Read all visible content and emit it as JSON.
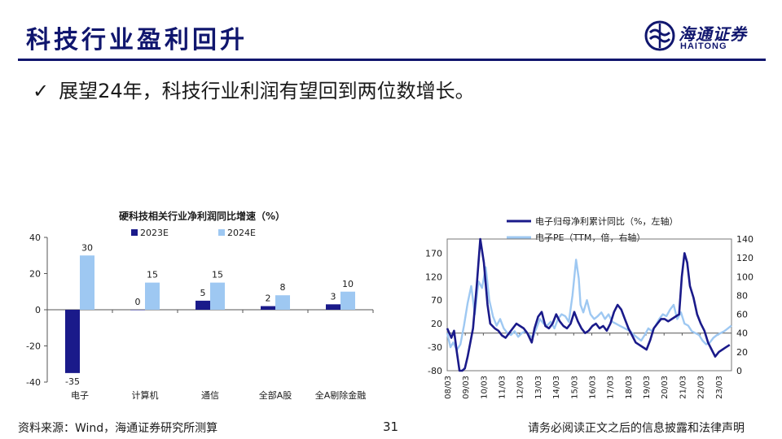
{
  "slide": {
    "title": "科技行业盈利回升",
    "bullet": "展望24年，科技行业利润有望回到两位数增长。",
    "logo_cn": "海通证券",
    "logo_en": "HAITONG",
    "source": "资料来源：Wind，海通证券研究所测算",
    "page_number": "31",
    "disclaimer": "请务必阅读正文之后的信息披露和法律声明",
    "colors": {
      "navy": "#10166e",
      "dark_series": "#1a1a8a",
      "light_series": "#9ec8f2"
    }
  },
  "chart_data": [
    {
      "type": "bar",
      "title": "硬科技相关行业净利润同比增速（%）",
      "categories": [
        "电子",
        "计算机",
        "通信",
        "全部A股",
        "全A剔除金融"
      ],
      "series": [
        {
          "name": "2023E",
          "values": [
            -35,
            0,
            5,
            2,
            3
          ],
          "color": "#1a1a8a"
        },
        {
          "name": "2024E",
          "values": [
            30,
            15,
            15,
            8,
            10
          ],
          "color": "#9ec8f2"
        }
      ],
      "ylim": [
        -40,
        40
      ],
      "yticks": [
        -40,
        -20,
        0,
        20,
        40
      ],
      "legend": "top"
    },
    {
      "type": "line",
      "x_ticks": [
        "08/03",
        "09/03",
        "10/03",
        "11/03",
        "12/03",
        "13/03",
        "14/03",
        "15/03",
        "16/03",
        "17/03",
        "18/03",
        "19/03",
        "20/03",
        "21/03",
        "22/03",
        "23/03"
      ],
      "x_range": [
        2008.17,
        2023.9
      ],
      "y_left": {
        "ylim": [
          -80,
          200
        ],
        "ticks": [
          -80,
          -30,
          20,
          70,
          120,
          170
        ]
      },
      "y_right": {
        "ylim": [
          0,
          140
        ],
        "ticks": [
          0,
          20,
          40,
          60,
          80,
          100,
          120,
          140
        ]
      },
      "legend": "top",
      "series": [
        {
          "name": "电子归母净利累计同比（%，左轴）",
          "axis": "left",
          "color": "#1a1a8a",
          "x": [
            2008.17,
            2008.4,
            2008.55,
            2008.7,
            2008.85,
            2009.0,
            2009.15,
            2009.3,
            2009.45,
            2009.6,
            2009.8,
            2010.0,
            2010.2,
            2010.4,
            2010.55,
            2010.8,
            2011.0,
            2011.2,
            2011.4,
            2011.6,
            2011.8,
            2012.0,
            2012.2,
            2012.4,
            2012.6,
            2012.85,
            2013.0,
            2013.2,
            2013.4,
            2013.6,
            2013.8,
            2014.0,
            2014.2,
            2014.4,
            2014.6,
            2014.8,
            2015.0,
            2015.2,
            2015.4,
            2015.6,
            2015.8,
            2016.0,
            2016.2,
            2016.4,
            2016.6,
            2016.8,
            2017.0,
            2017.2,
            2017.4,
            2017.6,
            2017.8,
            2018.0,
            2018.2,
            2018.4,
            2018.6,
            2018.8,
            2019.0,
            2019.2,
            2019.4,
            2019.6,
            2019.8,
            2020.0,
            2020.2,
            2020.4,
            2020.6,
            2020.8,
            2021.0,
            2021.15,
            2021.3,
            2021.45,
            2021.6,
            2021.8,
            2022.0,
            2022.2,
            2022.4,
            2022.6,
            2022.8,
            2023.0,
            2023.2,
            2023.4,
            2023.6,
            2023.8
          ],
          "y": [
            10,
            -10,
            5,
            -40,
            -80,
            -85,
            -75,
            -50,
            -20,
            10,
            100,
            210,
            150,
            60,
            20,
            10,
            5,
            -5,
            -10,
            0,
            10,
            20,
            15,
            10,
            0,
            -20,
            10,
            35,
            45,
            15,
            10,
            20,
            40,
            25,
            15,
            10,
            20,
            45,
            25,
            10,
            0,
            5,
            15,
            20,
            10,
            15,
            5,
            20,
            45,
            60,
            50,
            30,
            10,
            -5,
            -20,
            -25,
            -30,
            -35,
            -15,
            10,
            20,
            30,
            30,
            25,
            30,
            35,
            40,
            120,
            170,
            150,
            100,
            75,
            40,
            20,
            5,
            -20,
            -35,
            -50,
            -40,
            -35,
            -30,
            -25
          ]
        },
        {
          "name": "电子PE（TTM，倍，右轴）",
          "axis": "right",
          "color": "#9ec8f2",
          "x": [
            2008.17,
            2008.35,
            2008.5,
            2008.7,
            2008.9,
            2009.1,
            2009.3,
            2009.5,
            2009.7,
            2009.9,
            2010.1,
            2010.3,
            2010.5,
            2010.7,
            2010.9,
            2011.1,
            2011.3,
            2011.5,
            2011.7,
            2011.9,
            2012.1,
            2012.3,
            2012.5,
            2012.7,
            2012.9,
            2013.1,
            2013.3,
            2013.5,
            2013.7,
            2013.9,
            2014.1,
            2014.3,
            2014.5,
            2014.7,
            2014.9,
            2015.1,
            2015.3,
            2015.45,
            2015.55,
            2015.7,
            2015.9,
            2016.1,
            2016.3,
            2016.5,
            2016.7,
            2016.9,
            2017.1,
            2017.3,
            2017.5,
            2017.7,
            2017.9,
            2018.1,
            2018.3,
            2018.5,
            2018.7,
            2018.9,
            2019.1,
            2019.3,
            2019.5,
            2019.7,
            2019.9,
            2020.1,
            2020.3,
            2020.5,
            2020.7,
            2020.9,
            2021.1,
            2021.3,
            2021.5,
            2021.7,
            2021.9,
            2022.1,
            2022.3,
            2022.5,
            2022.7,
            2022.9,
            2023.1,
            2023.3,
            2023.5,
            2023.7,
            2023.9
          ],
          "y": [
            40,
            25,
            30,
            22,
            28,
            48,
            72,
            90,
            60,
            95,
            88,
            110,
            75,
            58,
            48,
            55,
            45,
            40,
            38,
            42,
            36,
            40,
            42,
            38,
            35,
            45,
            55,
            50,
            48,
            52,
            45,
            55,
            60,
            58,
            52,
            80,
            118,
            98,
            70,
            62,
            75,
            60,
            55,
            58,
            62,
            55,
            60,
            52,
            50,
            48,
            46,
            44,
            42,
            38,
            35,
            32,
            38,
            45,
            42,
            48,
            55,
            60,
            58,
            65,
            70,
            55,
            62,
            50,
            48,
            42,
            40,
            38,
            32,
            28,
            30,
            35,
            38,
            40,
            42,
            45,
            48
          ]
        }
      ]
    }
  ]
}
